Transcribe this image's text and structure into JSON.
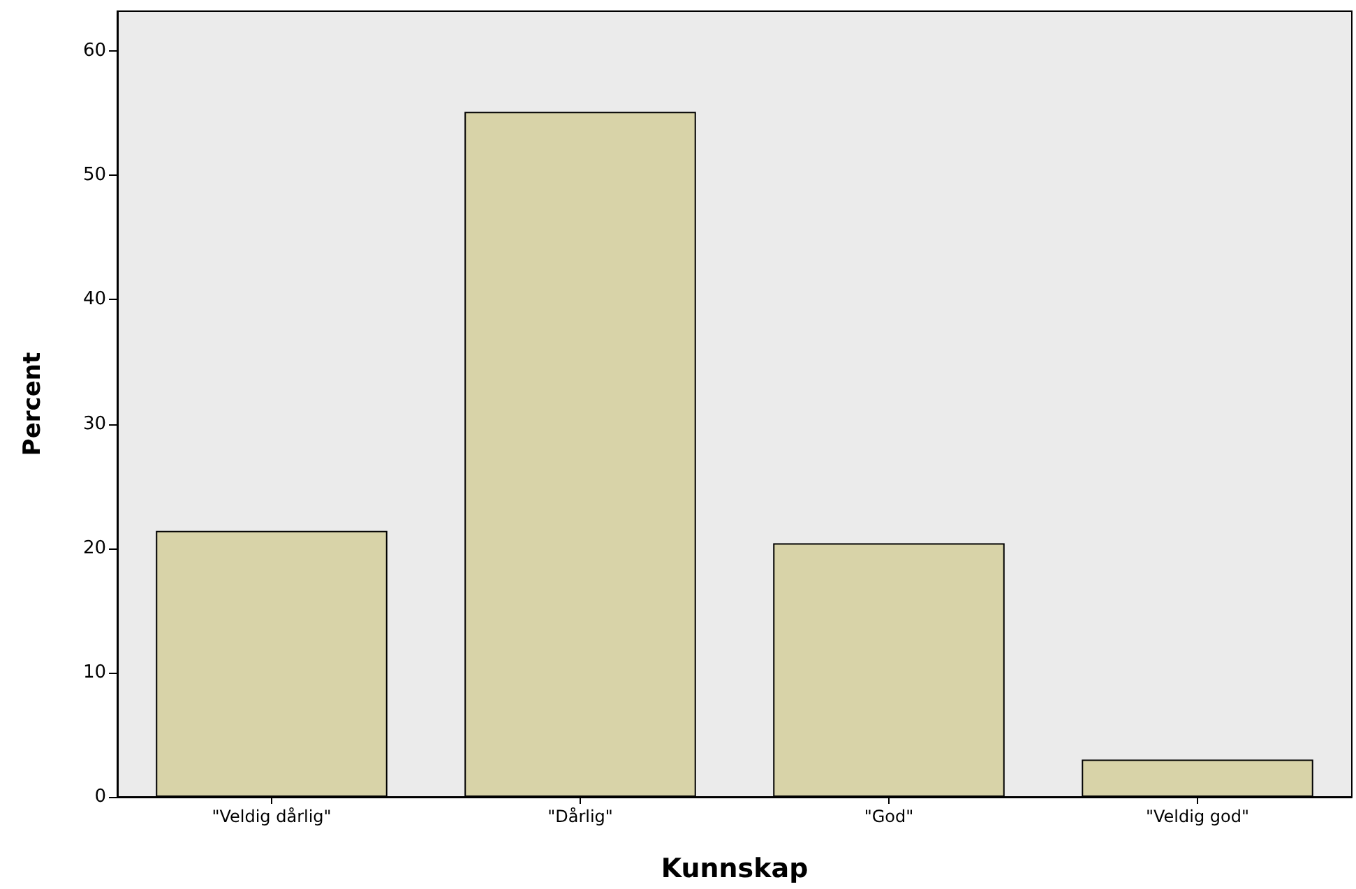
{
  "chart_data": {
    "type": "bar",
    "xlabel": "Kunnskap",
    "ylabel": "Percent",
    "categories": [
      "\"Veldig dårlig\"",
      "\"Dårlig\"",
      "\"God\"",
      "\"Veldig god\""
    ],
    "values": [
      21.4,
      55.1,
      20.4,
      3
    ],
    "color": "#d8d3a8",
    "ylim": [
      0,
      63.2
    ],
    "yticks": [
      0,
      10,
      20,
      30,
      40,
      50,
      60
    ],
    "grid": false
  }
}
